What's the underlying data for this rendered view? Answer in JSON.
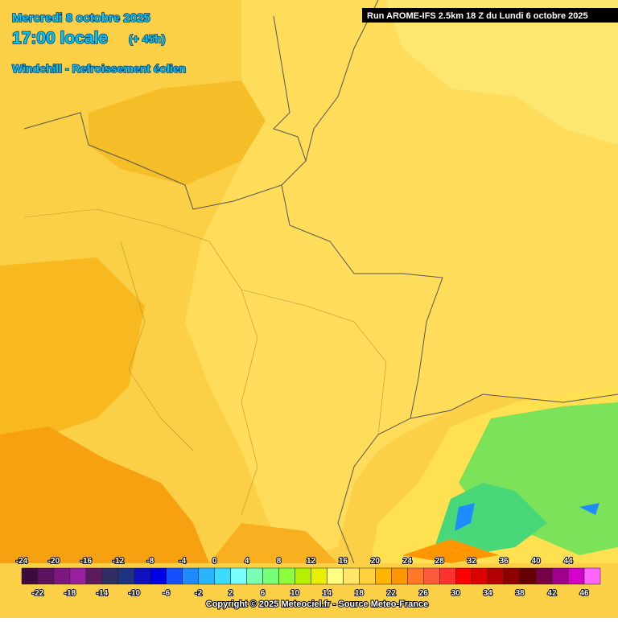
{
  "header": {
    "date": "Mercredi 8 octobre 2025",
    "time": "17:00 locale",
    "lead": "(+ 45h)",
    "parameter": "Windchill - Refroissement éolien",
    "run": "Run AROME-IFS 2.5km 18 Z du Lundi 6 octobre 2025"
  },
  "legend": {
    "values": [
      -24,
      -22,
      -20,
      -18,
      -16,
      -14,
      -12,
      -10,
      -8,
      -6,
      -4,
      -2,
      0,
      2,
      4,
      6,
      8,
      10,
      12,
      14,
      16,
      18,
      20,
      22,
      24,
      26,
      28,
      30,
      32,
      34,
      36,
      38,
      40,
      42,
      44,
      46
    ],
    "colors": [
      "#3e0b3e",
      "#5c125e",
      "#7c1880",
      "#9a20a2",
      "#5e1a5e",
      "#2e2e62",
      "#1e3282",
      "#1010c0",
      "#0000e6",
      "#1450ff",
      "#1e8cff",
      "#28b4ff",
      "#3cdcff",
      "#78ffff",
      "#78ffb4",
      "#78ff78",
      "#8cff3c",
      "#b4f000",
      "#e6f000",
      "#ffff80",
      "#ffe664",
      "#ffd23c",
      "#ffb400",
      "#ff9600",
      "#ff7828",
      "#ff5a3c",
      "#ff3232",
      "#ff0000",
      "#dc0000",
      "#b40000",
      "#8c0000",
      "#640000",
      "#780046",
      "#a0008c",
      "#d200c8",
      "#ff64ff"
    ]
  },
  "footer": {
    "copyright": "Copyright © 2025 Meteociel.fr - Source Meteo-France"
  }
}
